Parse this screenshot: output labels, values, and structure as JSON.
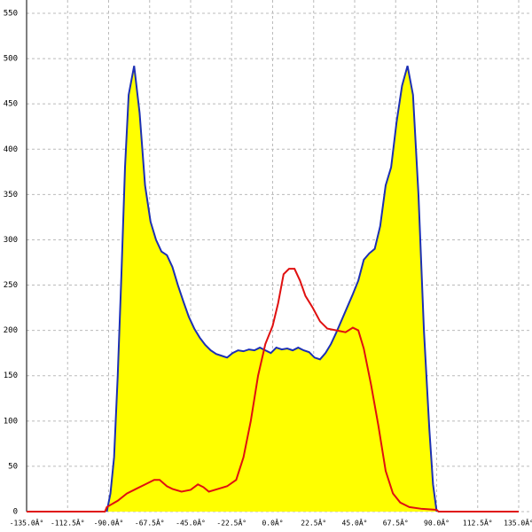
{
  "chart_data": {
    "type": "area-line",
    "xlim": [
      -135,
      135
    ],
    "ylim": [
      0,
      550
    ],
    "xticks": [
      {
        "value": -135,
        "label": "-135.0Â°"
      },
      {
        "value": -112.5,
        "label": "-112.5Â°"
      },
      {
        "value": -90,
        "label": "-90.0Â°"
      },
      {
        "value": -67.5,
        "label": "-67.5Â°"
      },
      {
        "value": -45,
        "label": "-45.0Â°"
      },
      {
        "value": -22.5,
        "label": "-22.5Â°"
      },
      {
        "value": 0,
        "label": "0.0Â°"
      },
      {
        "value": 22.5,
        "label": "22.5Â°"
      },
      {
        "value": 45,
        "label": "45.0Â°"
      },
      {
        "value": 67.5,
        "label": "67.5Â°"
      },
      {
        "value": 90,
        "label": "90.0Â°"
      },
      {
        "value": 112.5,
        "label": "112.5Â°"
      },
      {
        "value": 135,
        "label": "135.0Â°"
      }
    ],
    "yticks": [
      0,
      50,
      100,
      150,
      200,
      250,
      300,
      350,
      400,
      450,
      500,
      550
    ],
    "grid": true,
    "series": [
      {
        "color": "#1c2fb4",
        "fill": "#ffff00",
        "x": [
          -91,
          -89,
          -87,
          -85,
          -83,
          -81,
          -79,
          -76,
          -73,
          -70,
          -67,
          -64,
          -61,
          -58,
          -55,
          -52,
          -49,
          -46,
          -43,
          -40,
          -37,
          -34,
          -31,
          -28,
          -25,
          -22,
          -19,
          -16,
          -13,
          -10,
          -7,
          -4,
          -1,
          2,
          5,
          8,
          11,
          14,
          17,
          20,
          23,
          26,
          29,
          32,
          35,
          38,
          41,
          44,
          47,
          50,
          53,
          56,
          59,
          62,
          65,
          68,
          71,
          74,
          77,
          80,
          83,
          86,
          88,
          90
        ],
        "values": [
          0,
          20,
          60,
          150,
          260,
          380,
          460,
          492,
          440,
          360,
          320,
          300,
          287,
          283,
          270,
          250,
          232,
          215,
          202,
          192,
          184,
          178,
          174,
          172,
          170,
          175,
          178,
          177,
          179,
          178,
          181,
          178,
          175,
          181,
          179,
          180,
          178,
          181,
          178,
          176,
          170,
          168,
          175,
          185,
          198,
          212,
          226,
          240,
          255,
          278,
          285,
          290,
          315,
          360,
          380,
          430,
          470,
          492,
          460,
          350,
          200,
          90,
          30,
          0
        ]
      },
      {
        "color": "#e01010",
        "x": [
          -135,
          -92,
          -91,
          -85,
          -80,
          -75,
          -70,
          -65,
          -62,
          -58,
          -55,
          -50,
          -45,
          -41,
          -38,
          -35,
          -30,
          -25,
          -20,
          -16,
          -12,
          -8,
          -4,
          0,
          3,
          6,
          9,
          12,
          15,
          18,
          22,
          26,
          30,
          35,
          40,
          44,
          47,
          50,
          54,
          58,
          62,
          66,
          70,
          75,
          82,
          90,
          91,
          135
        ],
        "values": [
          0,
          0,
          5,
          12,
          20,
          25,
          30,
          35,
          35,
          28,
          25,
          22,
          24,
          30,
          27,
          22,
          25,
          28,
          35,
          60,
          100,
          150,
          185,
          205,
          230,
          262,
          268,
          268,
          255,
          238,
          225,
          210,
          202,
          200,
          198,
          203,
          200,
          180,
          140,
          95,
          45,
          20,
          10,
          5,
          3,
          2,
          0,
          0
        ]
      }
    ]
  }
}
